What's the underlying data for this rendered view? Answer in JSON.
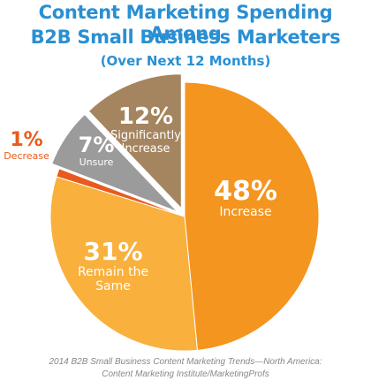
{
  "title": "Content Marketing Spending Among",
  "title_line2": "B2B Small Business Marketers",
  "subtitle": "(Over Next 12 Months)",
  "source_line1": "2014 B2B Small Business Content Marketing Trends—North America:",
  "source_line2": "Content Marketing Institute/MarketingProfs",
  "chart_data": {
    "type": "pie",
    "slices": [
      {
        "pct": "48%",
        "label": [
          "Increase"
        ],
        "value": 48,
        "color": "#f4951f"
      },
      {
        "pct": "31%",
        "label": [
          "Remain the",
          "Same"
        ],
        "value": 31,
        "color": "#f9b03c"
      },
      {
        "pct": "1%",
        "label": [
          "Decrease"
        ],
        "value": 1,
        "color": "#e85b1c"
      },
      {
        "pct": "7%",
        "label": [
          "Unsure"
        ],
        "value": 7,
        "color": "#9b9b9b"
      },
      {
        "pct": "12%",
        "label": [
          "Significantly",
          "Increase"
        ],
        "value": 12,
        "color": "#a5855f"
      }
    ]
  }
}
